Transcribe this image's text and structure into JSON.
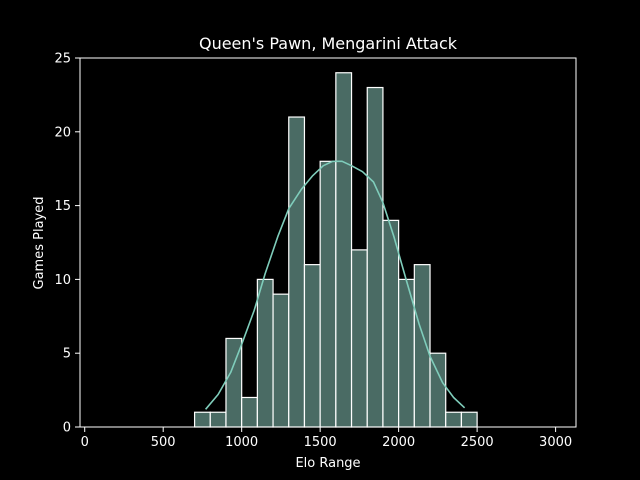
{
  "chart_data": {
    "type": "bar",
    "title": "Queen's Pawn, Mengarini Attack",
    "xlabel": "Elo Range",
    "ylabel": "Games Played",
    "xlim": [
      -30,
      3130
    ],
    "ylim": [
      0,
      25
    ],
    "xticks": [
      0,
      500,
      1000,
      1500,
      2000,
      2500,
      3000
    ],
    "yticks": [
      0,
      5,
      10,
      15,
      20,
      25
    ],
    "grid": false,
    "legend": "none",
    "bins": [
      {
        "x0": 700,
        "x1": 800,
        "count": 1
      },
      {
        "x0": 800,
        "x1": 900,
        "count": 1
      },
      {
        "x0": 900,
        "x1": 1000,
        "count": 6
      },
      {
        "x0": 1000,
        "x1": 1100,
        "count": 2
      },
      {
        "x0": 1100,
        "x1": 1200,
        "count": 10
      },
      {
        "x0": 1200,
        "x1": 1300,
        "count": 9
      },
      {
        "x0": 1300,
        "x1": 1400,
        "count": 21
      },
      {
        "x0": 1400,
        "x1": 1500,
        "count": 11
      },
      {
        "x0": 1500,
        "x1": 1600,
        "count": 18
      },
      {
        "x0": 1600,
        "x1": 1700,
        "count": 24
      },
      {
        "x0": 1700,
        "x1": 1800,
        "count": 12
      },
      {
        "x0": 1800,
        "x1": 1900,
        "count": 23
      },
      {
        "x0": 1900,
        "x1": 2000,
        "count": 14
      },
      {
        "x0": 2000,
        "x1": 2100,
        "count": 10
      },
      {
        "x0": 2100,
        "x1": 2200,
        "count": 11
      },
      {
        "x0": 2200,
        "x1": 2300,
        "count": 5
      },
      {
        "x0": 2300,
        "x1": 2400,
        "count": 1
      },
      {
        "x0": 2400,
        "x1": 2500,
        "count": 1
      }
    ],
    "kde": {
      "x": [
        770,
        850,
        930,
        1000,
        1080,
        1150,
        1230,
        1300,
        1380,
        1450,
        1520,
        1580,
        1640,
        1700,
        1770,
        1840,
        1900,
        1970,
        2050,
        2130,
        2200,
        2280,
        2350,
        2420
      ],
      "y": [
        1.2,
        2.2,
        3.7,
        5.6,
        7.9,
        10.4,
        12.9,
        14.8,
        16.1,
        17.0,
        17.7,
        18.0,
        18.0,
        17.7,
        17.3,
        16.6,
        15.2,
        12.9,
        9.9,
        7.0,
        4.8,
        3.0,
        2.0,
        1.3
      ]
    },
    "colors": {
      "background": "#000000",
      "bar_fill": "#4a6b64",
      "bar_edge": "#ffffff",
      "kde_line": "#7fcdbb",
      "axis": "#ffffff",
      "text": "#ffffff"
    }
  }
}
